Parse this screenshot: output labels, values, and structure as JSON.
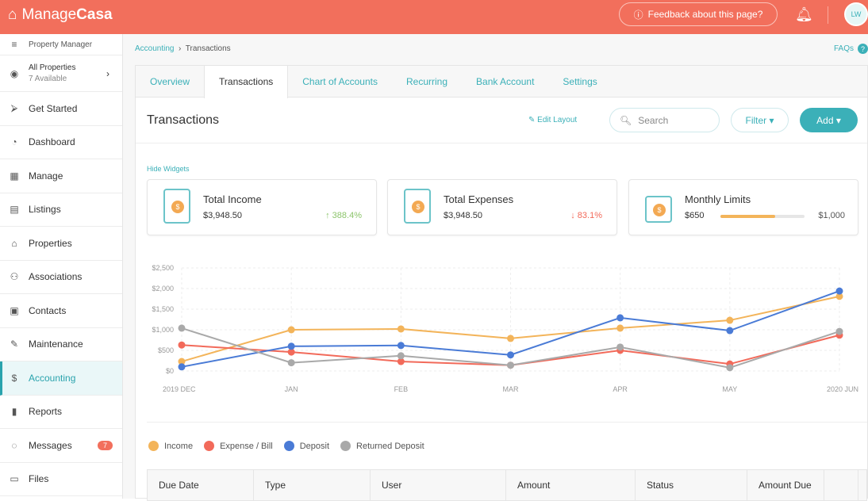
{
  "app": {
    "brand_light": "Manage",
    "brand_bold": "Casa",
    "feedback": "Feedback about this page?",
    "avatar": "LW"
  },
  "sidebar": {
    "role": "Property Manager",
    "property": "All Properties",
    "property_sub": "7 Available",
    "items": [
      {
        "label": "Get Started",
        "icon": "⮚"
      },
      {
        "label": "Dashboard",
        "icon": "◔"
      },
      {
        "label": "Manage",
        "icon": "▦"
      },
      {
        "label": "Listings",
        "icon": "▤"
      },
      {
        "label": "Properties",
        "icon": "⌂"
      },
      {
        "label": "Associations",
        "icon": "⚇"
      },
      {
        "label": "Contacts",
        "icon": "▣"
      },
      {
        "label": "Maintenance",
        "icon": "✎"
      },
      {
        "label": "Accounting",
        "icon": "$"
      },
      {
        "label": "Reports",
        "icon": "▮"
      },
      {
        "label": "Messages",
        "icon": "◌",
        "badge": "7"
      },
      {
        "label": "Files",
        "icon": "▭"
      }
    ]
  },
  "breadcrumb": {
    "parent": "Accounting",
    "current": "Transactions"
  },
  "faqs": "FAQs",
  "tabs": [
    "Overview",
    "Transactions",
    "Chart of Accounts",
    "Recurring",
    "Bank Account",
    "Settings"
  ],
  "page": {
    "title": "Transactions",
    "edit_layout": "Edit Layout",
    "search_placeholder": "Search",
    "filter": "Filter ▾",
    "add": "Add ▾",
    "hide_widgets": "Hide Widgets"
  },
  "widgets": {
    "income": {
      "title": "Total Income",
      "value": "$3,948.50",
      "change": "↑ 388.4%"
    },
    "expenses": {
      "title": "Total Expenses",
      "value": "$3,948.50",
      "change": "↓ 83.1%"
    },
    "limits": {
      "title": "Monthly Limits",
      "value": "$650",
      "max": "$1,000",
      "fraction": 0.65
    }
  },
  "colors": {
    "income": "#f3b45a",
    "expense": "#f26a5a",
    "deposit": "#4a7bd6",
    "returned": "#a9a9a9",
    "accent": "#3bb0b8"
  },
  "chart_data": {
    "type": "line",
    "categories": [
      "2019 DEC",
      "JAN",
      "FEB",
      "MAR",
      "APR",
      "MAY",
      "2020 JUN"
    ],
    "yticks": [
      "$0",
      "$500",
      "$1,000",
      "$1,500",
      "$2,000",
      "$2,500"
    ],
    "ylim": [
      0,
      2500
    ],
    "series": [
      {
        "name": "Income",
        "color": "#f3b45a",
        "values": [
          230,
          1000,
          1020,
          790,
          1040,
          1230,
          1810
        ]
      },
      {
        "name": "Expense / Bill",
        "color": "#f26a5a",
        "values": [
          630,
          460,
          230,
          140,
          500,
          170,
          870
        ]
      },
      {
        "name": "Deposit",
        "color": "#4a7bd6",
        "values": [
          100,
          600,
          620,
          390,
          1290,
          980,
          1940
        ]
      },
      {
        "name": "Returned Deposit",
        "color": "#a9a9a9",
        "values": [
          1040,
          200,
          370,
          140,
          580,
          80,
          960
        ]
      }
    ]
  },
  "table": {
    "columns": [
      "Due Date",
      "Type",
      "User",
      "Amount",
      "Status",
      "Amount Due"
    ]
  }
}
